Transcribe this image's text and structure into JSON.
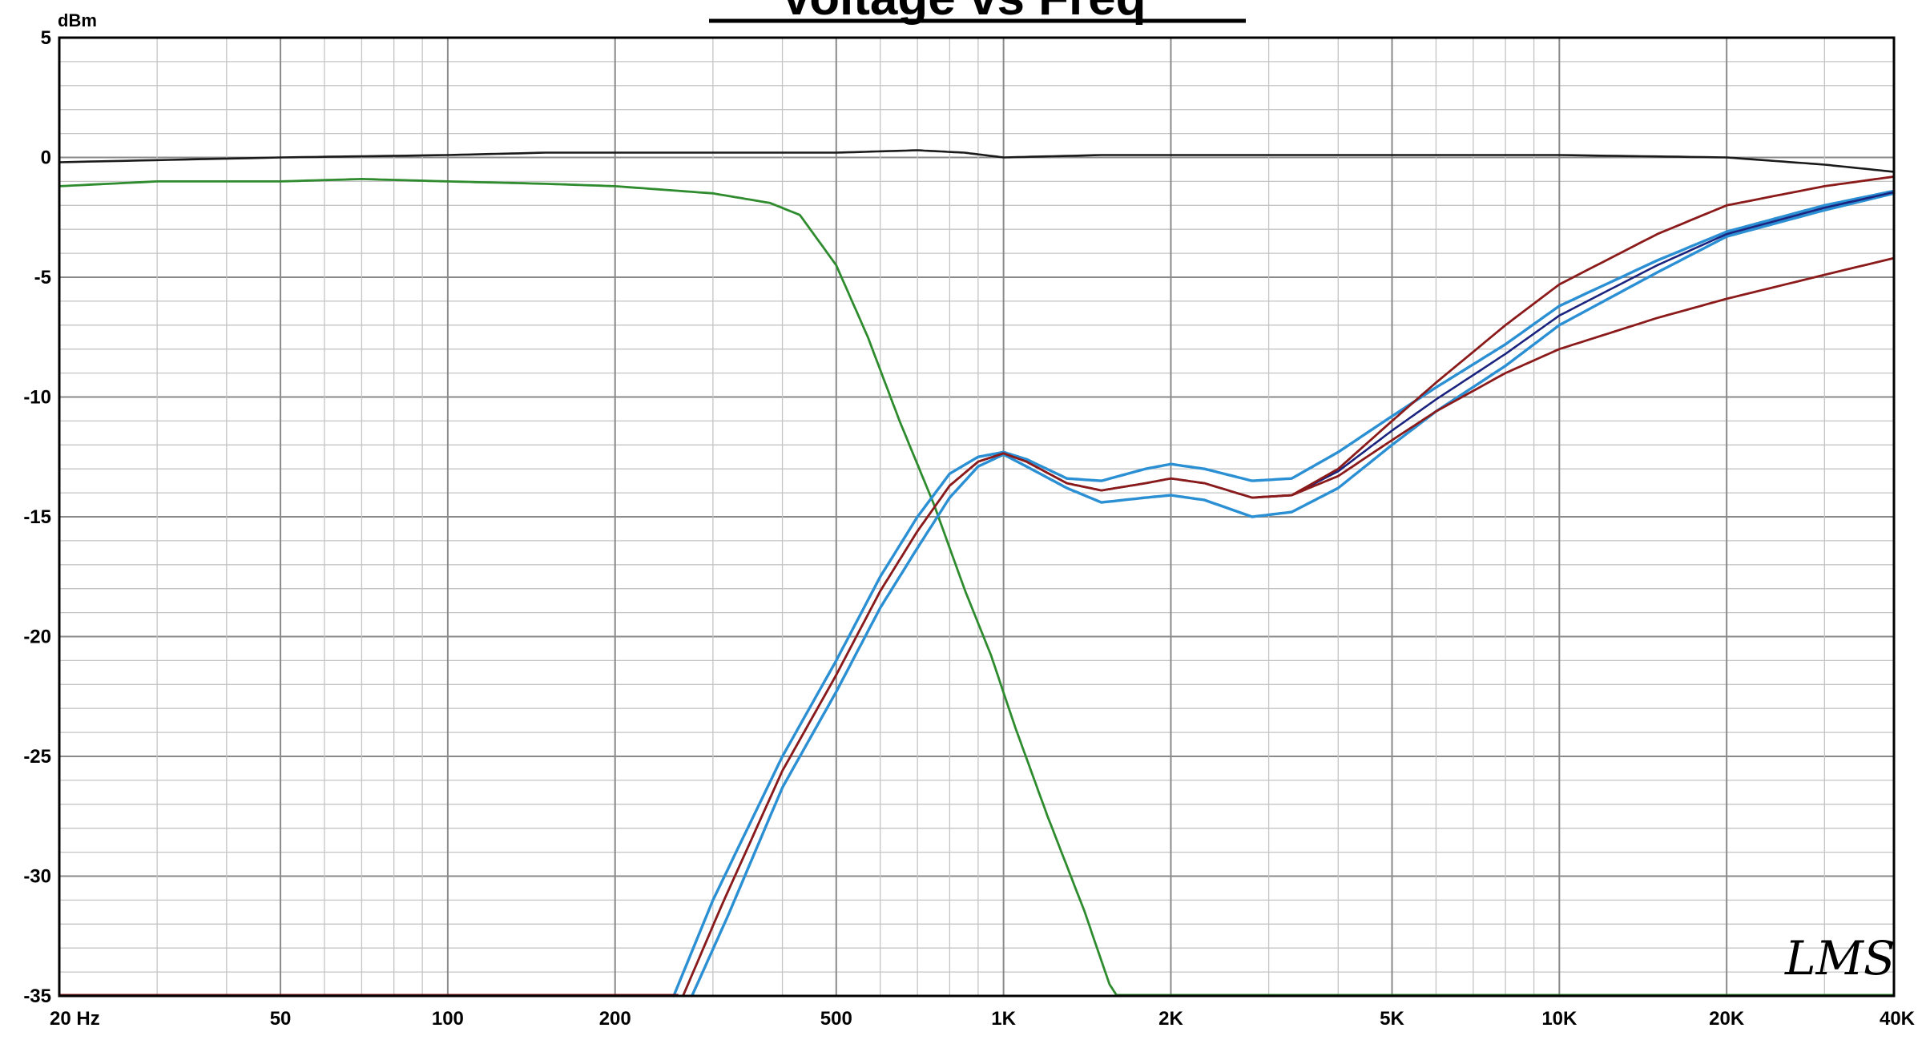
{
  "chart_data": {
    "type": "line",
    "title": "Voltage vs Freq",
    "ylabel": "dBm",
    "xlabel": "",
    "x_scale": "log",
    "xlim": [
      20,
      40000
    ],
    "ylim": [
      -35,
      5
    ],
    "grid": true,
    "legend": "none",
    "watermark": "LMS",
    "x_ticks": [
      {
        "value": 20,
        "label": "20  Hz"
      },
      {
        "value": 50,
        "label": "50"
      },
      {
        "value": 100,
        "label": "100"
      },
      {
        "value": 200,
        "label": "200"
      },
      {
        "value": 500,
        "label": "500"
      },
      {
        "value": 1000,
        "label": "1K"
      },
      {
        "value": 2000,
        "label": "2K"
      },
      {
        "value": 5000,
        "label": "5K"
      },
      {
        "value": 10000,
        "label": "10K"
      },
      {
        "value": 20000,
        "label": "20K"
      },
      {
        "value": 40000,
        "label": "40K"
      }
    ],
    "y_ticks": [
      {
        "value": 5,
        "label": "5"
      },
      {
        "value": 0,
        "label": "0"
      },
      {
        "value": -5,
        "label": "-5"
      },
      {
        "value": -10,
        "label": "-10"
      },
      {
        "value": -15,
        "label": "-15"
      },
      {
        "value": -20,
        "label": "-20"
      },
      {
        "value": -25,
        "label": "-25"
      },
      {
        "value": -30,
        "label": "-30"
      },
      {
        "value": -35,
        "label": "-35"
      }
    ],
    "series": [
      {
        "color": "#1a1a1a",
        "width": 2.6,
        "points": [
          [
            20,
            -0.2
          ],
          [
            50,
            0.0
          ],
          [
            100,
            0.1
          ],
          [
            150,
            0.2
          ],
          [
            300,
            0.2
          ],
          [
            500,
            0.2
          ],
          [
            700,
            0.3
          ],
          [
            850,
            0.2
          ],
          [
            1000,
            0.0
          ],
          [
            1500,
            0.1
          ],
          [
            3000,
            0.1
          ],
          [
            5000,
            0.1
          ],
          [
            10000,
            0.1
          ],
          [
            20000,
            0.0
          ],
          [
            30000,
            -0.3
          ],
          [
            40000,
            -0.6
          ]
        ]
      },
      {
        "color": "#2e8b2e",
        "width": 2.8,
        "points": [
          [
            20,
            -1.2
          ],
          [
            30,
            -1.0
          ],
          [
            50,
            -1.0
          ],
          [
            70,
            -0.9
          ],
          [
            100,
            -1.0
          ],
          [
            150,
            -1.1
          ],
          [
            200,
            -1.2
          ],
          [
            300,
            -1.5
          ],
          [
            380,
            -1.9
          ],
          [
            430,
            -2.4
          ],
          [
            500,
            -4.5
          ],
          [
            570,
            -7.5
          ],
          [
            650,
            -11.0
          ],
          [
            750,
            -14.5
          ],
          [
            850,
            -18.0
          ],
          [
            950,
            -20.8
          ],
          [
            1050,
            -23.8
          ],
          [
            1200,
            -27.5
          ],
          [
            1400,
            -31.5
          ],
          [
            1550,
            -34.5
          ],
          [
            1600,
            -35.0
          ]
        ]
      },
      {
        "color": "#2b8fd4",
        "width": 3.4,
        "points": [
          [
            255,
            -35.0
          ],
          [
            300,
            -31.0
          ],
          [
            400,
            -25.0
          ],
          [
            500,
            -21.0
          ],
          [
            600,
            -17.5
          ],
          [
            700,
            -15.0
          ],
          [
            800,
            -13.2
          ],
          [
            900,
            -12.5
          ],
          [
            1000,
            -12.3
          ],
          [
            1100,
            -12.6
          ],
          [
            1300,
            -13.4
          ],
          [
            1500,
            -13.5
          ],
          [
            1800,
            -13.0
          ],
          [
            2000,
            -12.8
          ],
          [
            2300,
            -13.0
          ],
          [
            2800,
            -13.5
          ],
          [
            3300,
            -13.4
          ],
          [
            4000,
            -12.3
          ],
          [
            5000,
            -10.8
          ],
          [
            6000,
            -9.6
          ],
          [
            8000,
            -7.8
          ],
          [
            10000,
            -6.2
          ],
          [
            15000,
            -4.3
          ],
          [
            20000,
            -3.1
          ],
          [
            30000,
            -2.0
          ],
          [
            40000,
            -1.4
          ]
        ]
      },
      {
        "color": "#2b8fd4",
        "width": 3.4,
        "points": [
          [
            275,
            -35.0
          ],
          [
            320,
            -31.6
          ],
          [
            400,
            -26.3
          ],
          [
            500,
            -22.3
          ],
          [
            600,
            -18.8
          ],
          [
            700,
            -16.3
          ],
          [
            800,
            -14.2
          ],
          [
            900,
            -12.9
          ],
          [
            1000,
            -12.4
          ],
          [
            1100,
            -12.9
          ],
          [
            1300,
            -13.8
          ],
          [
            1500,
            -14.4
          ],
          [
            1800,
            -14.2
          ],
          [
            2000,
            -14.1
          ],
          [
            2300,
            -14.3
          ],
          [
            2800,
            -15.0
          ],
          [
            3300,
            -14.8
          ],
          [
            4000,
            -13.8
          ],
          [
            5000,
            -12.0
          ],
          [
            6000,
            -10.6
          ],
          [
            8000,
            -8.7
          ],
          [
            10000,
            -7.0
          ],
          [
            15000,
            -4.8
          ],
          [
            20000,
            -3.3
          ],
          [
            30000,
            -2.2
          ],
          [
            40000,
            -1.5
          ]
        ]
      },
      {
        "color": "#1a237e",
        "width": 2.6,
        "points": [
          [
            265,
            -35.0
          ],
          [
            310,
            -31.3
          ],
          [
            400,
            -25.6
          ],
          [
            500,
            -21.6
          ],
          [
            600,
            -18.1
          ],
          [
            700,
            -15.6
          ],
          [
            800,
            -13.7
          ],
          [
            900,
            -12.7
          ],
          [
            1000,
            -12.35
          ],
          [
            1100,
            -12.7
          ],
          [
            1300,
            -13.6
          ],
          [
            1500,
            -13.9
          ],
          [
            1800,
            -13.6
          ],
          [
            2000,
            -13.4
          ],
          [
            2300,
            -13.6
          ],
          [
            2800,
            -14.2
          ],
          [
            3300,
            -14.1
          ],
          [
            4000,
            -13.1
          ],
          [
            5000,
            -11.4
          ],
          [
            6000,
            -10.1
          ],
          [
            8000,
            -8.2
          ],
          [
            10000,
            -6.6
          ],
          [
            15000,
            -4.5
          ],
          [
            20000,
            -3.2
          ],
          [
            30000,
            -2.1
          ],
          [
            40000,
            -1.45
          ]
        ]
      },
      {
        "color": "#8b1a1a",
        "width": 2.8,
        "points": [
          [
            265,
            -35.0
          ],
          [
            310,
            -31.3
          ],
          [
            400,
            -25.6
          ],
          [
            500,
            -21.6
          ],
          [
            600,
            -18.1
          ],
          [
            700,
            -15.6
          ],
          [
            800,
            -13.7
          ],
          [
            900,
            -12.7
          ],
          [
            1000,
            -12.35
          ],
          [
            1100,
            -12.7
          ],
          [
            1300,
            -13.6
          ],
          [
            1500,
            -13.9
          ],
          [
            1800,
            -13.6
          ],
          [
            2000,
            -13.4
          ],
          [
            2300,
            -13.6
          ],
          [
            2800,
            -14.2
          ],
          [
            3300,
            -14.1
          ],
          [
            4000,
            -13.0
          ],
          [
            5000,
            -11.0
          ],
          [
            6000,
            -9.4
          ],
          [
            8000,
            -7.0
          ],
          [
            10000,
            -5.3
          ],
          [
            15000,
            -3.2
          ],
          [
            20000,
            -2.0
          ],
          [
            30000,
            -1.2
          ],
          [
            40000,
            -0.8
          ]
        ]
      },
      {
        "color": "#8b1a1a",
        "width": 2.8,
        "points": [
          [
            2800,
            -14.2
          ],
          [
            3300,
            -14.1
          ],
          [
            4000,
            -13.3
          ],
          [
            5000,
            -11.8
          ],
          [
            6000,
            -10.6
          ],
          [
            8000,
            -9.0
          ],
          [
            10000,
            -8.0
          ],
          [
            15000,
            -6.7
          ],
          [
            20000,
            -5.9
          ],
          [
            30000,
            -4.9
          ],
          [
            40000,
            -4.2
          ]
        ]
      }
    ]
  }
}
